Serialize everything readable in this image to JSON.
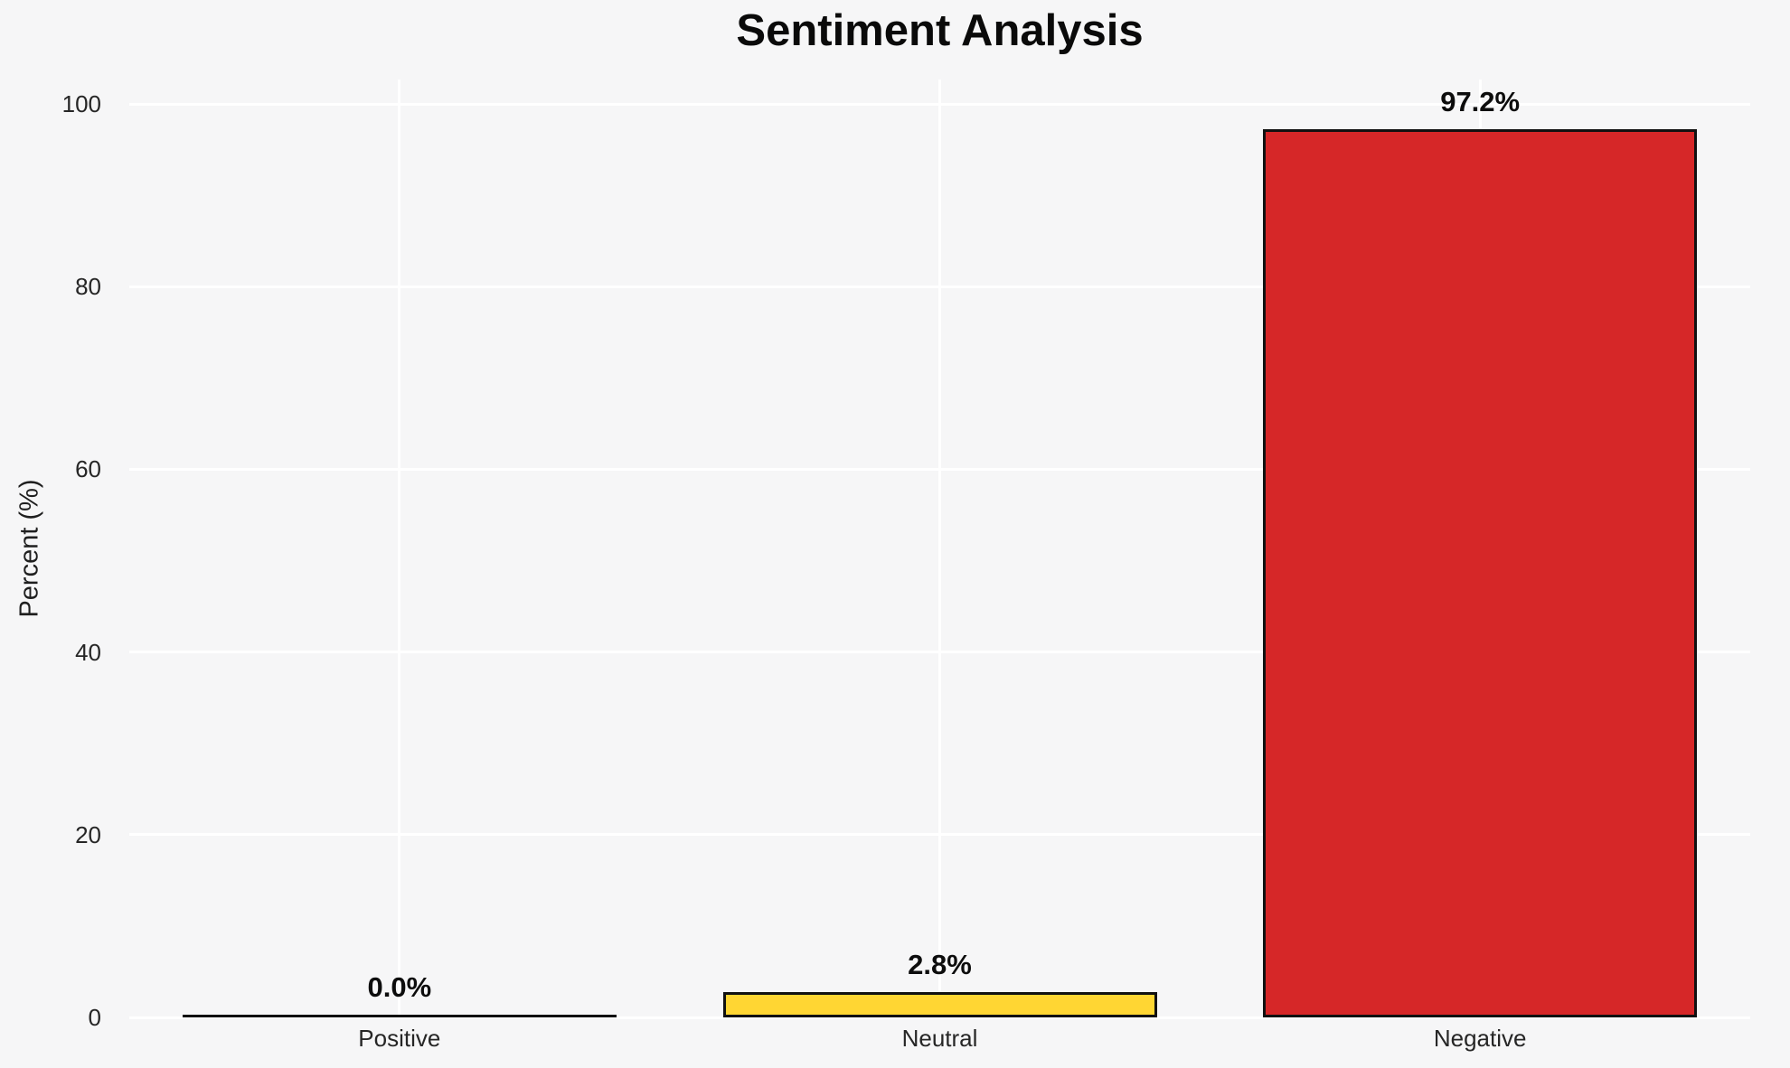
{
  "chart_data": {
    "type": "bar",
    "title": "Sentiment Analysis",
    "xlabel": "",
    "ylabel": "Percent (%)",
    "categories": [
      "Positive",
      "Neutral",
      "Negative"
    ],
    "values": [
      0.0,
      2.8,
      97.2
    ],
    "value_labels": [
      "0.0%",
      "2.8%",
      "97.2%"
    ],
    "bar_colors": [
      null,
      "#ffd633",
      "#d62728"
    ],
    "bar_edge_color": "#111111",
    "ylim": [
      0,
      100
    ],
    "yticks": [
      0,
      20,
      40,
      60,
      80,
      100
    ],
    "grid": true,
    "gridline_color": "#ffffff",
    "background_color": "#f6f6f7",
    "legend_position": "none"
  }
}
